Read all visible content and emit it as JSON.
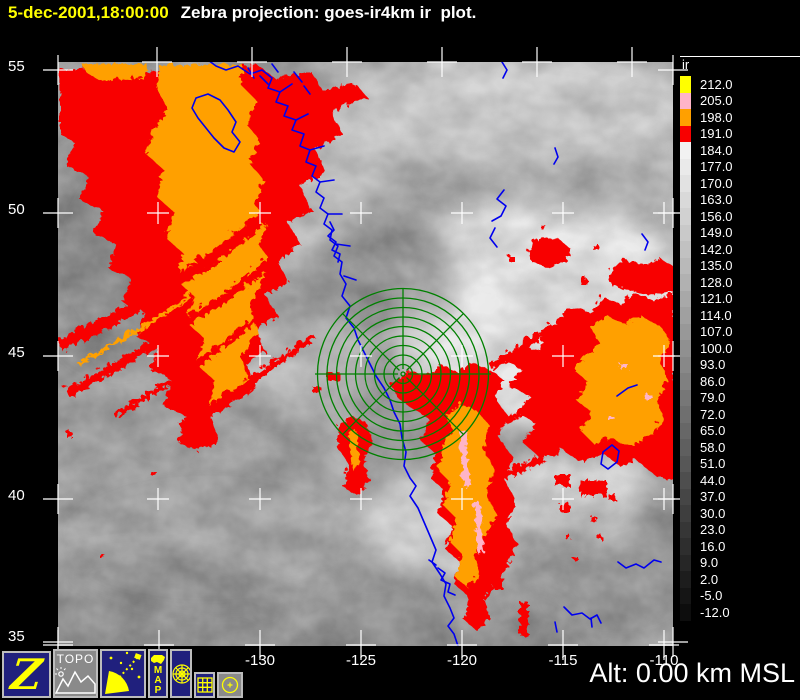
{
  "header": {
    "timestamp": "5-dec-2001,18:00:00",
    "title": "Zebra projection: goes-ir4km ir  plot."
  },
  "axes": {
    "lat_labels": [
      "55",
      "50",
      "45",
      "40",
      "35"
    ],
    "lon_labels": [
      "-130",
      "-125",
      "-120",
      "-115",
      "-110"
    ]
  },
  "colorbar": {
    "title": "ir",
    "levels": [
      "212.0",
      "205.0",
      "198.0",
      "191.0",
      "184.0",
      "177.0",
      "170.0",
      "163.0",
      "156.0",
      "149.0",
      "142.0",
      "135.0",
      "128.0",
      "121.0",
      "114.0",
      "107.0",
      "100.0",
      "93.0",
      "86.0",
      "79.0",
      "72.0",
      "65.0",
      "58.0",
      "51.0",
      "44.0",
      "37.0",
      "30.0",
      "23.0",
      "16.0",
      "9.0",
      "2.0",
      "-5.0",
      "-12.0"
    ],
    "cell_colors": [
      "#ffff00",
      "#ffb4c8",
      "#ffa000",
      "#f80000"
    ],
    "gray_ramp": {
      "from": "#f2f2f2",
      "to": "#0d0d0d"
    }
  },
  "status": {
    "altitude": "Alt: 0.00 km MSL"
  },
  "toolbar": {
    "buttons": [
      {
        "id": "zebra",
        "label": "Z",
        "icon": "zebra-logo-icon"
      },
      {
        "id": "topo",
        "label": "TOPO",
        "icon": "mountains-icon"
      },
      {
        "id": "satellite",
        "label": "",
        "icon": "satellite-dish-icon"
      },
      {
        "id": "map-overlay",
        "label": "MAP",
        "icon": "us-map-icon"
      },
      {
        "id": "range-rings",
        "label": "",
        "icon": "radar-rings-icon"
      },
      {
        "id": "grid",
        "label": "",
        "icon": "grid-icon"
      },
      {
        "id": "station",
        "label": "",
        "icon": "circle-dot-icon"
      }
    ]
  },
  "colors": {
    "title_yellow": "#ffff00",
    "text_white": "#ffffff",
    "cloud_red": "#f80000",
    "cloud_orange": "#ffa000",
    "cloud_pink": "#ffb4c8",
    "coast_blue": "#0000ee",
    "rings_green": "#008000",
    "button_navy": "#20207d",
    "button_gray": "#8a8a8a"
  }
}
